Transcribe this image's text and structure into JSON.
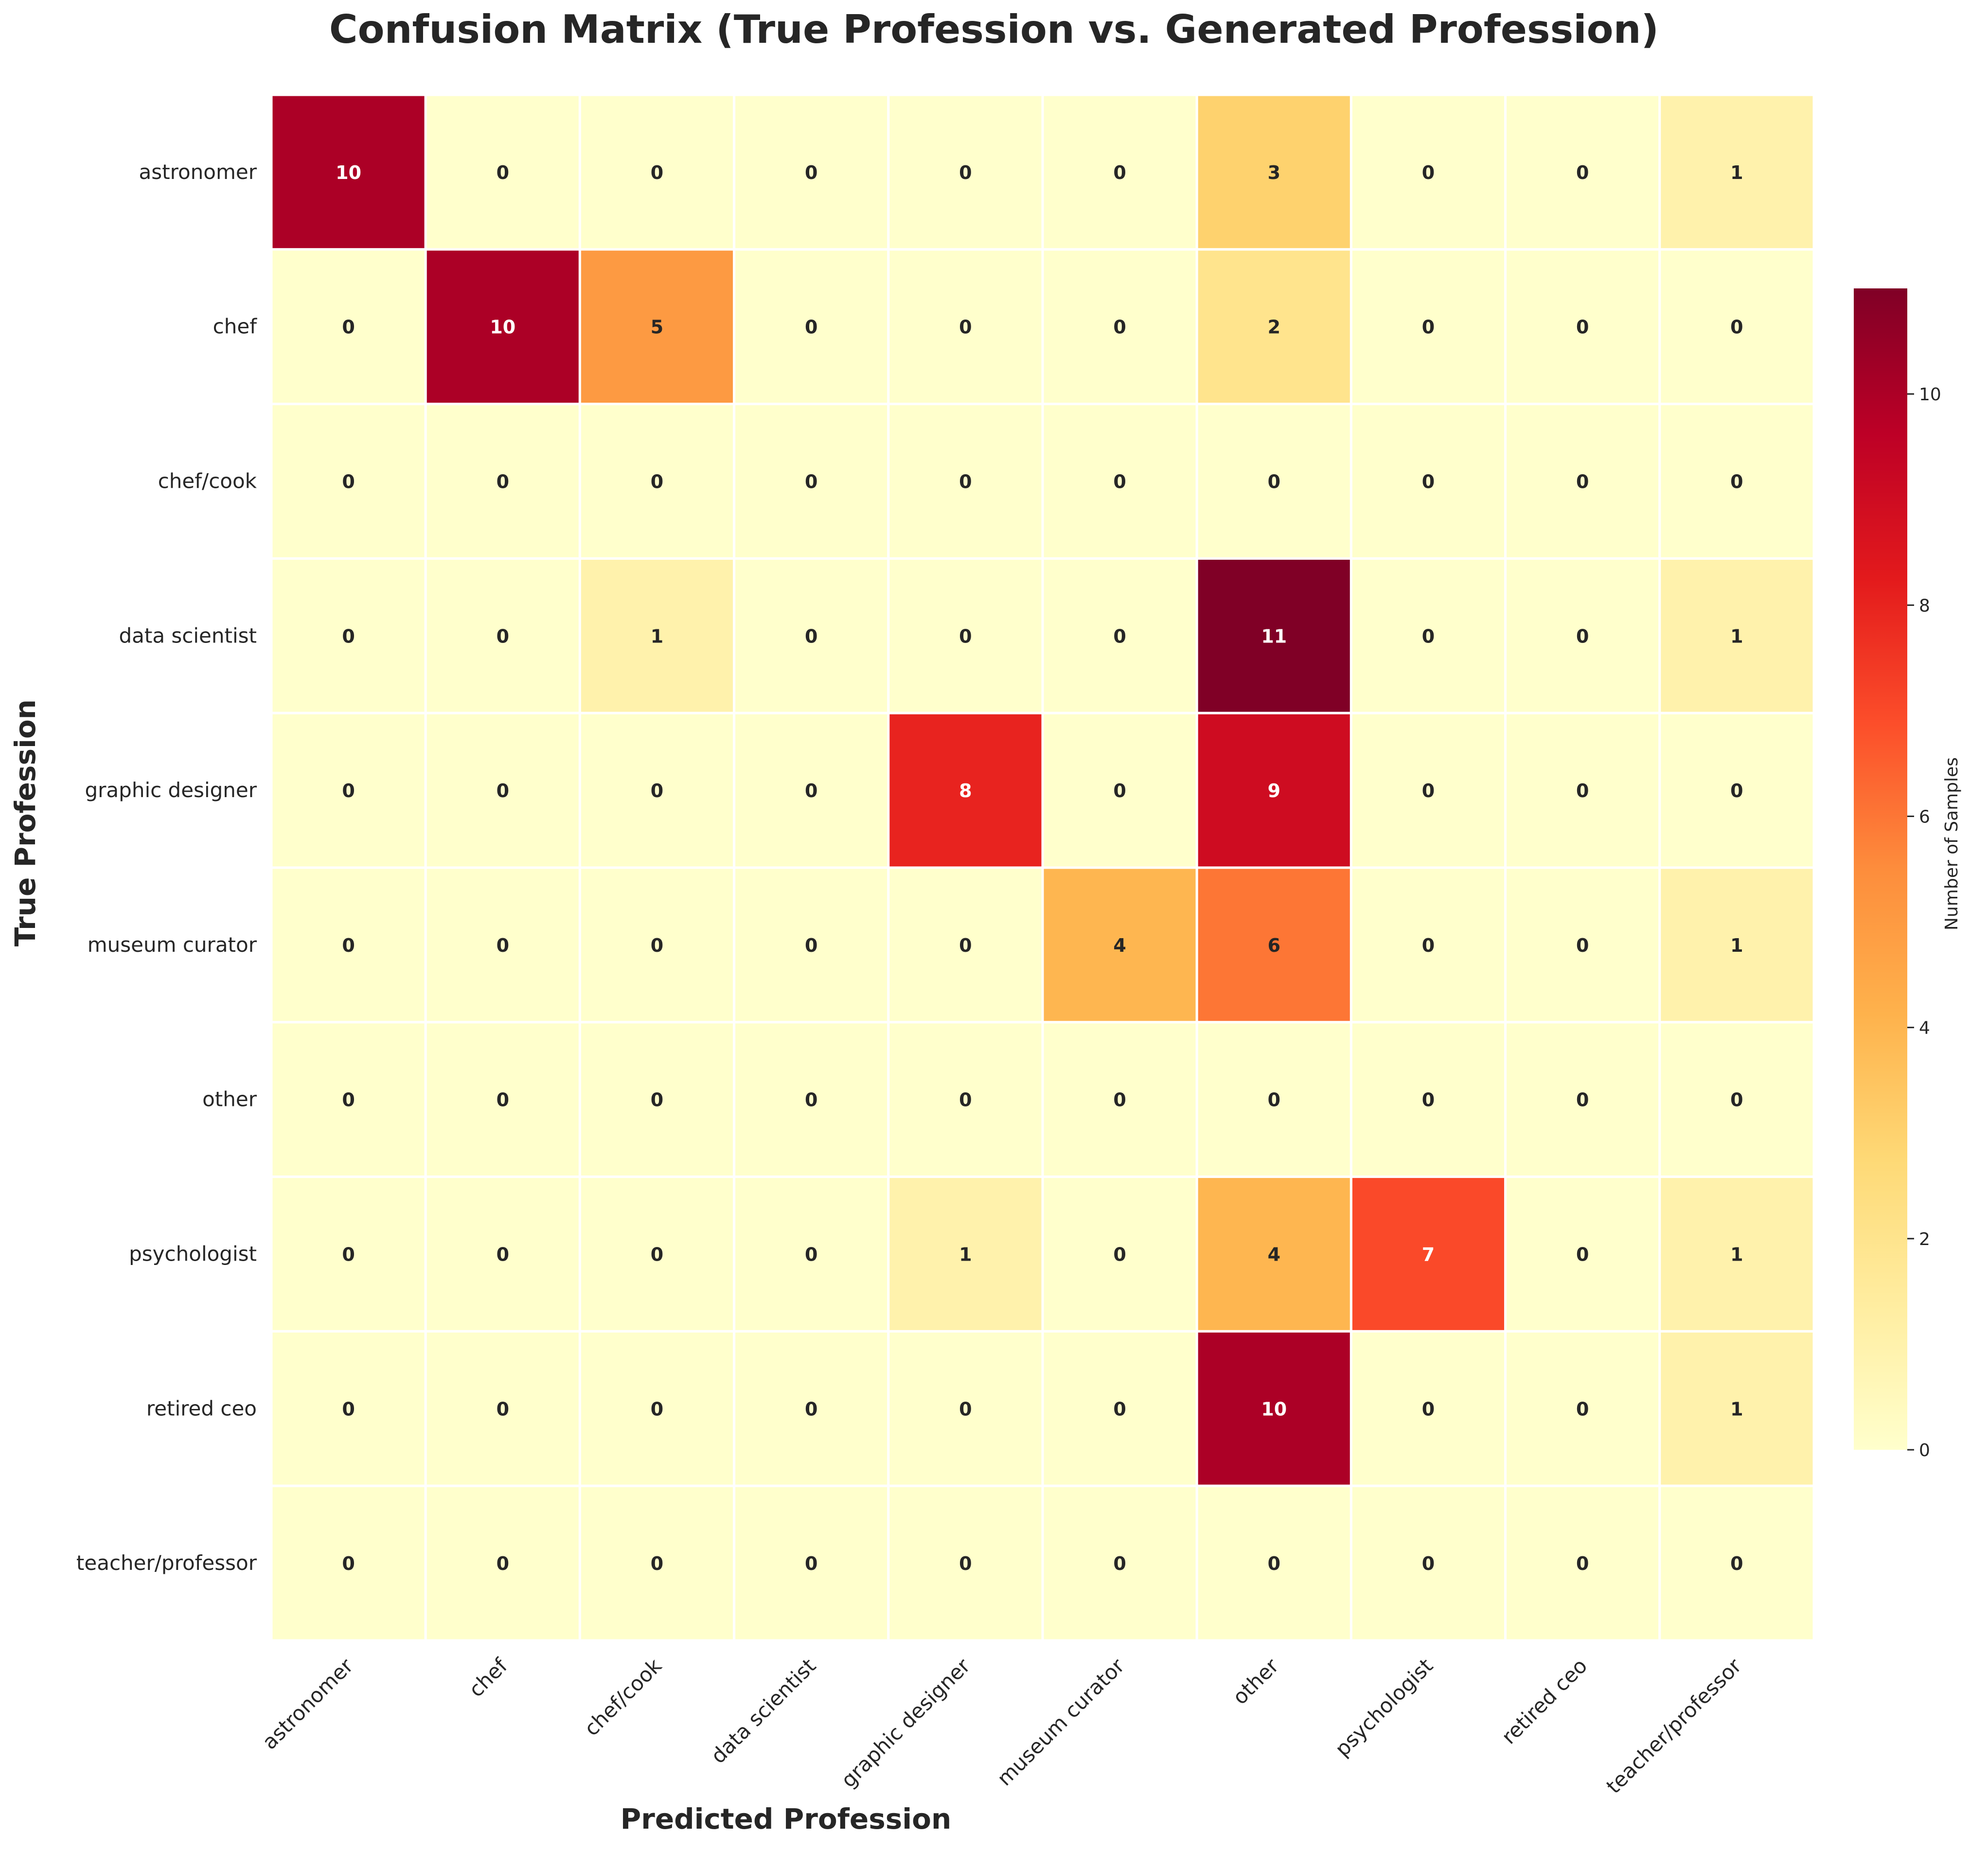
{
  "chart_data": {
    "type": "heatmap",
    "title": "Confusion Matrix (True Profession vs. Generated Profession)",
    "xlabel": "Predicted Profession",
    "ylabel": "True Profession",
    "x_categories": [
      "astronomer",
      "chef",
      "chef/cook",
      "data scientist",
      "graphic designer",
      "museum curator",
      "other",
      "psychologist",
      "retired ceo",
      "teacher/professor"
    ],
    "y_categories": [
      "astronomer",
      "chef",
      "chef/cook",
      "data scientist",
      "graphic designer",
      "museum curator",
      "other",
      "psychologist",
      "retired ceo",
      "teacher/professor"
    ],
    "values": [
      [
        10,
        0,
        0,
        0,
        0,
        0,
        3,
        0,
        0,
        1
      ],
      [
        0,
        10,
        5,
        0,
        0,
        0,
        2,
        0,
        0,
        0
      ],
      [
        0,
        0,
        0,
        0,
        0,
        0,
        0,
        0,
        0,
        0
      ],
      [
        0,
        0,
        1,
        0,
        0,
        0,
        11,
        0,
        0,
        1
      ],
      [
        0,
        0,
        0,
        0,
        8,
        0,
        9,
        0,
        0,
        0
      ],
      [
        0,
        0,
        0,
        0,
        0,
        4,
        6,
        0,
        0,
        1
      ],
      [
        0,
        0,
        0,
        0,
        0,
        0,
        0,
        0,
        0,
        0
      ],
      [
        0,
        0,
        0,
        0,
        1,
        0,
        4,
        7,
        0,
        1
      ],
      [
        0,
        0,
        0,
        0,
        0,
        0,
        10,
        0,
        0,
        1
      ],
      [
        0,
        0,
        0,
        0,
        0,
        0,
        0,
        0,
        0,
        0
      ]
    ],
    "colorbar": {
      "label": "Number of Samples",
      "range": [
        0,
        11
      ],
      "ticks": [
        0,
        2,
        4,
        6,
        8,
        10
      ],
      "colormap": "YlOrRd"
    },
    "annotations": "cell counts"
  }
}
